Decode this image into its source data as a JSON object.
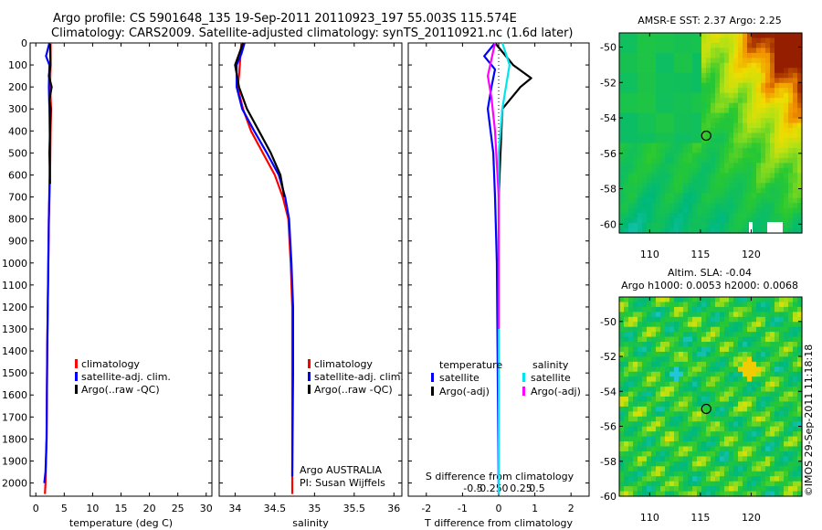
{
  "header": {
    "line1": "Argo profile: CS 5901648_135 19-Sep-2011 20110923_197 55.003S 115.574E",
    "line2": "Climatology: CARS2009. Satellite-adjusted climatology: synTS_20110921.nc (1.6d later)"
  },
  "colors": {
    "climatology": "#ff0000",
    "satellite": "#0000ff",
    "argo": "#000000",
    "sal_satellite": "#00e5ee",
    "sal_argo": "#ff00ff"
  },
  "chart_data": [
    {
      "type": "line",
      "id": "temperature",
      "xlabel": "temperature (deg C)",
      "xlim": [
        -1,
        31
      ],
      "xticks": [
        0,
        5,
        10,
        15,
        20,
        25,
        30
      ],
      "xtick_labels": [
        "0",
        "5",
        "10",
        "15",
        "20",
        "25",
        "30"
      ],
      "ylim": [
        0,
        2060
      ],
      "yticks": [
        0,
        100,
        200,
        300,
        400,
        500,
        600,
        700,
        800,
        900,
        1000,
        1100,
        1200,
        1300,
        1400,
        1500,
        1600,
        1700,
        1800,
        1900,
        2000
      ],
      "ytick_labels": [
        "0",
        "100",
        "200",
        "300",
        "400",
        "500",
        "600",
        "700",
        "800",
        "900",
        "1000",
        "1100",
        "1200",
        "1300",
        "1400",
        "1500",
        "1600",
        "1700",
        "1800",
        "1900",
        "2000"
      ],
      "legend": [
        "climatology",
        "satellite-adj. clim.",
        "Argo(..raw -QC)"
      ],
      "series": [
        {
          "name": "climatology",
          "color": "#ff0000",
          "x": [
            2.6,
            2.6,
            2.5,
            2.7,
            2.6,
            2.5,
            2.3,
            2.2,
            2.0,
            1.9,
            1.7,
            1.6
          ],
          "y": [
            0,
            100,
            200,
            300,
            400,
            600,
            800,
            1000,
            1400,
            1800,
            2000,
            2050
          ]
        },
        {
          "name": "satellite-adj. clim.",
          "color": "#0000ff",
          "x": [
            2.4,
            1.8,
            2.4,
            2.3,
            2.4,
            2.5,
            2.3,
            2.2,
            2.0,
            1.9,
            1.7,
            1.5
          ],
          "y": [
            0,
            60,
            100,
            200,
            300,
            500,
            800,
            1000,
            1400,
            1800,
            1950,
            2000
          ]
        },
        {
          "name": "Argo(..raw -QC)",
          "color": "#000000",
          "x": [
            2.5,
            2.6,
            2.3,
            2.8,
            2.4,
            2.6,
            2.4,
            2.5
          ],
          "y": [
            5,
            100,
            150,
            200,
            260,
            300,
            500,
            640
          ]
        }
      ]
    },
    {
      "type": "line",
      "id": "salinity",
      "xlabel": "salinity",
      "xlim": [
        33.8,
        36.1
      ],
      "xticks": [
        34,
        34.5,
        35,
        35.5,
        36
      ],
      "xtick_labels": [
        "34",
        "34.5",
        "35",
        "35.5",
        "36"
      ],
      "ylim": [
        0,
        2060
      ],
      "legend": [
        "climatology",
        "satellite-adj. clim.",
        "Argo(..raw -QC)"
      ],
      "annotation": [
        "Argo AUSTRALIA",
        "PI: Susan Wijffels"
      ],
      "series": [
        {
          "name": "climatology",
          "color": "#ff0000",
          "x": [
            34.08,
            34.05,
            34.03,
            34.1,
            34.2,
            34.35,
            34.5,
            34.6,
            34.67,
            34.7,
            34.72,
            34.72,
            34.72
          ],
          "y": [
            0,
            150,
            200,
            300,
            400,
            500,
            600,
            700,
            800,
            1000,
            1200,
            1500,
            2050
          ]
        },
        {
          "name": "satellite-adj. clim.",
          "color": "#0000ff",
          "x": [
            34.12,
            34.08,
            34.02,
            34.02,
            34.09,
            34.24,
            34.4,
            34.55,
            34.63,
            34.68,
            34.71,
            34.73,
            34.73,
            34.72
          ],
          "y": [
            0,
            50,
            100,
            200,
            300,
            400,
            500,
            600,
            700,
            800,
            1000,
            1200,
            1500,
            1970
          ]
        },
        {
          "name": "Argo(..raw -QC)",
          "color": "#000000",
          "x": [
            34.1,
            34.0,
            34.05,
            34.15,
            34.3,
            34.45,
            34.57,
            34.62
          ],
          "y": [
            0,
            100,
            200,
            300,
            400,
            500,
            600,
            700
          ]
        }
      ]
    },
    {
      "type": "line",
      "id": "difference",
      "xlabel": "T difference from climatology",
      "xlabel2": "S difference from climatology",
      "xlim": [
        -2.5,
        2.5
      ],
      "xticks": [
        -2,
        -1,
        0,
        1,
        2
      ],
      "xtick_labels": [
        "-2",
        "-1",
        "0",
        "1",
        "2"
      ],
      "sticks": [
        -0.5,
        -0.25,
        0,
        0.25,
        0.5
      ],
      "stick_labels": [
        "-0.5",
        "-0.25",
        "0",
        "0.25",
        "0.5"
      ],
      "ylim": [
        0,
        2060
      ],
      "legend_groups": [
        {
          "title": "temperature",
          "items": [
            "satellite",
            "Argo(-adj)"
          ]
        },
        {
          "title": "salinity",
          "items": [
            "satellite",
            "Argo(-adj)"
          ]
        }
      ],
      "series": [
        {
          "name": "temperature satellite",
          "color": "#0000ff",
          "x": [
            -0.1,
            -0.4,
            -0.1,
            -0.2,
            -0.3,
            -0.15,
            -0.1,
            -0.05,
            0
          ],
          "y": [
            0,
            60,
            120,
            200,
            300,
            500,
            700,
            1000,
            2050
          ]
        },
        {
          "name": "temperature Argo(-adj)",
          "color": "#000000",
          "x": [
            -0.1,
            0.4,
            0.9,
            0.6,
            0.1,
            0.05,
            0
          ],
          "y": [
            0,
            100,
            160,
            200,
            300,
            500,
            700
          ]
        },
        {
          "name": "salinity satellite",
          "color": "#00e5ee",
          "x": [
            0.1,
            0.3,
            0.2,
            0.1,
            0.0,
            0.0,
            0.0
          ],
          "y": [
            0,
            100,
            200,
            300,
            500,
            1000,
            2050
          ]
        },
        {
          "name": "salinity Argo(-adj)",
          "color": "#ff00ff",
          "x": [
            -0.1,
            -0.3,
            -0.2,
            -0.1,
            0.0,
            0.0
          ],
          "y": [
            0,
            150,
            250,
            400,
            700,
            1300
          ]
        }
      ]
    },
    {
      "type": "heatmap",
      "id": "sst-map",
      "title": "AMSR-E SST: 2.37 Argo: 2.25",
      "xlim": [
        107,
        125
      ],
      "ylim": [
        -60.5,
        -49.2
      ],
      "xticks": [
        110,
        115,
        120
      ],
      "xtick_labels": [
        "110",
        "115",
        "120"
      ],
      "yticks": [
        -50,
        -52,
        -54,
        -56,
        -58,
        -60
      ],
      "ytick_labels": [
        "-50",
        "-52",
        "-54",
        "-56",
        "-58",
        "-60"
      ],
      "marker": [
        115.574,
        -55.003
      ]
    },
    {
      "type": "heatmap",
      "id": "sla-map",
      "title": "Altim. SLA: -0.04",
      "subtitle": "Argo h1000: 0.0053 h2000: 0.0068",
      "xlim": [
        107,
        125
      ],
      "ylim": [
        -60,
        -48.6
      ],
      "xticks": [
        110,
        115,
        120
      ],
      "xtick_labels": [
        "110",
        "115",
        "120"
      ],
      "yticks": [
        -50,
        -52,
        -54,
        -56,
        -58,
        -60
      ],
      "ytick_labels": [
        "-50",
        "-52",
        "-54",
        "-56",
        "-58",
        "-60"
      ],
      "marker": [
        115.574,
        -55.003
      ]
    }
  ],
  "watermark": "©IMOS 29-Sep-2011 11:18:18"
}
